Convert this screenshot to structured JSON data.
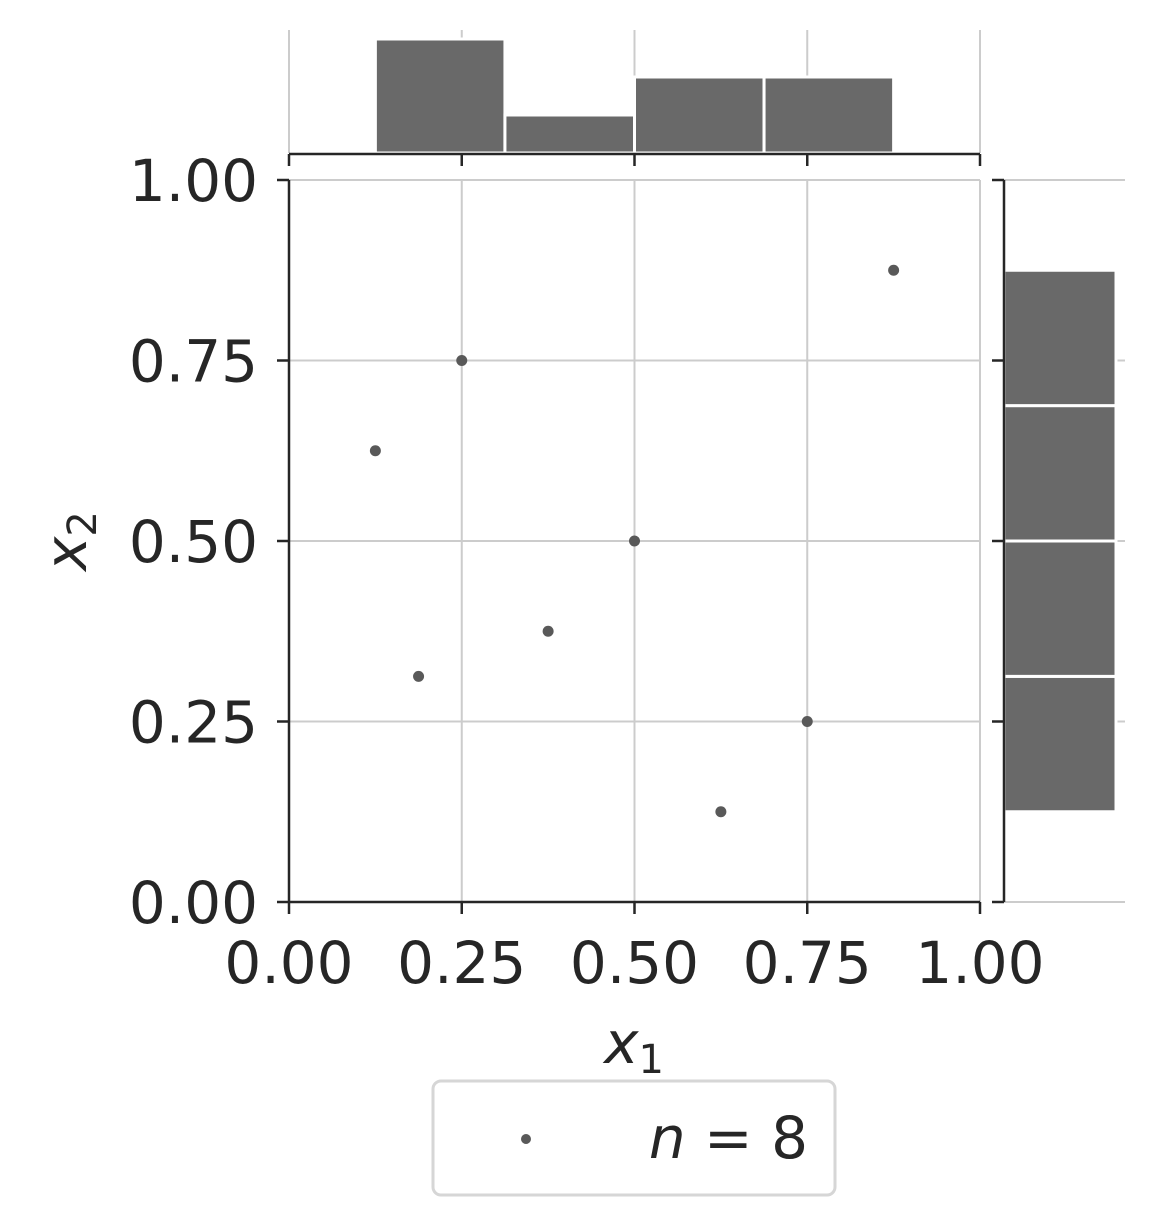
{
  "chart_data": {
    "type": "scatter",
    "title": "",
    "xlabel": {
      "base": "x",
      "sub": "1"
    },
    "ylabel": {
      "base": "x",
      "sub": "2"
    },
    "xlim": [
      0,
      1
    ],
    "ylim": [
      0,
      1
    ],
    "grid": true,
    "x_ticks": [
      "0.00",
      "0.25",
      "0.50",
      "0.75",
      "1.00"
    ],
    "y_ticks": [
      "0.00",
      "0.25",
      "0.50",
      "0.75",
      "1.00"
    ],
    "series": [
      {
        "name": "n = 8",
        "color": "#595959",
        "points": [
          {
            "x": 0.125,
            "y": 0.625
          },
          {
            "x": 0.1875,
            "y": 0.3125
          },
          {
            "x": 0.25,
            "y": 0.75
          },
          {
            "x": 0.375,
            "y": 0.375
          },
          {
            "x": 0.5,
            "y": 0.5
          },
          {
            "x": 0.625,
            "y": 0.125
          },
          {
            "x": 0.75,
            "y": 0.25
          },
          {
            "x": 0.875,
            "y": 0.875
          }
        ]
      }
    ],
    "marginal_x_histogram": {
      "color": "#696969",
      "bins": [
        {
          "start": 0.125,
          "end": 0.3125,
          "count": 3
        },
        {
          "start": 0.3125,
          "end": 0.5,
          "count": 1
        },
        {
          "start": 0.5,
          "end": 0.6875,
          "count": 2
        },
        {
          "start": 0.6875,
          "end": 0.875,
          "count": 2
        }
      ]
    },
    "marginal_y_histogram": {
      "color": "#696969",
      "bins": [
        {
          "start": 0.125,
          "end": 0.3125,
          "count": 2
        },
        {
          "start": 0.3125,
          "end": 0.5,
          "count": 2
        },
        {
          "start": 0.5,
          "end": 0.6875,
          "count": 2
        },
        {
          "start": 0.6875,
          "end": 0.875,
          "count": 2
        }
      ]
    },
    "legend": {
      "position": "bottom-center",
      "label_var": "n",
      "label_value": "8"
    }
  }
}
